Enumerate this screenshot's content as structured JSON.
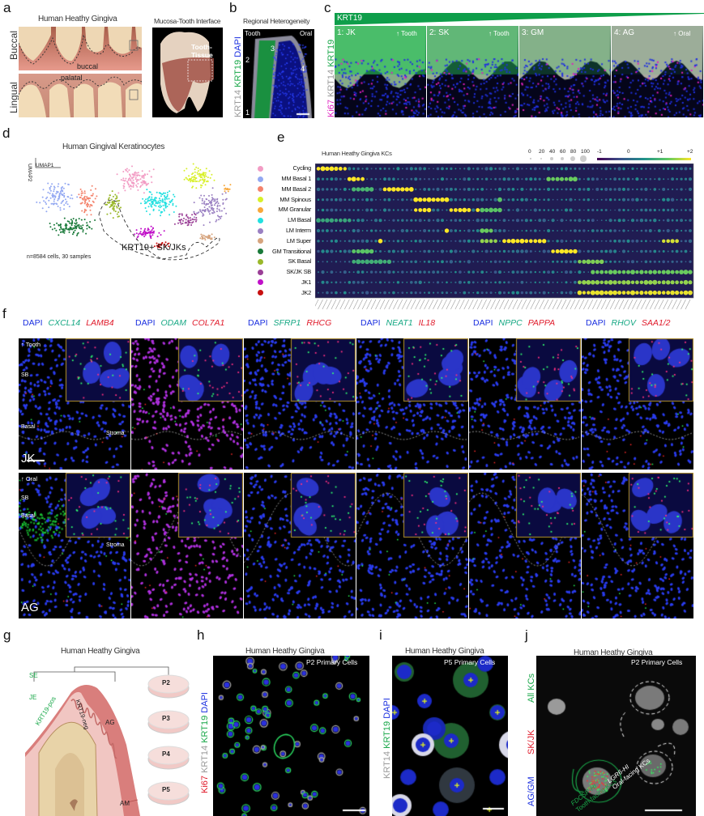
{
  "panel_labels": {
    "a": "a",
    "b": "b",
    "c": "c",
    "d": "d",
    "e": "e",
    "f": "f",
    "g": "g",
    "h": "h",
    "i": "i",
    "j": "j"
  },
  "panel_a": {
    "title": "Human Heathy Gingiva",
    "row_labels": [
      "Buccal",
      "Lingual"
    ],
    "annotations": [
      "buccal",
      "palatal"
    ],
    "interface_title": "Mucosa-Tooth Interface",
    "interface_label": "Tooth-\nTissue"
  },
  "panel_b": {
    "title": "Regional Heterogeneity",
    "stain": [
      {
        "text": "KRT14",
        "color": "grey"
      },
      {
        "text": "KRT19",
        "color": "green"
      },
      {
        "text": "DAPI",
        "color": "blue"
      }
    ],
    "left_dir": "Tooth",
    "right_dir": "Oral",
    "regions": [
      "1",
      "2",
      "3",
      "4"
    ]
  },
  "panel_c": {
    "gradient_label": "KRT19",
    "stain": [
      {
        "text": "Ki67",
        "color": "mag"
      },
      {
        "text": "KRT14",
        "color": "grey"
      },
      {
        "text": "KRT19",
        "color": "green"
      }
    ],
    "images": [
      {
        "label": "1: JK",
        "dir": "↑ Tooth"
      },
      {
        "label": "2: SK",
        "dir": "↑ Tooth"
      },
      {
        "label": "3: GM",
        "dir": ""
      },
      {
        "label": "4: AG",
        "dir": "↑ Oral"
      }
    ]
  },
  "panel_d": {
    "title": "Human Gingival Keratinocytes",
    "axis_x": "UMAP1",
    "axis_y": "UMAP2",
    "count_note": "n=8584 cells, 30 samples",
    "highlight_label": "KRT19+ SK/JKs"
  },
  "chart_data": {
    "type": "dotplot",
    "title": "Human Heathy Gingiva KCs",
    "size_legend": {
      "label_values": [
        "0",
        "20",
        "40",
        "60",
        "80",
        "100"
      ]
    },
    "color_legend": {
      "ticks": [
        "-1",
        "0",
        "+1",
        "+2"
      ],
      "range": [
        -1,
        2
      ]
    },
    "n_genes": 85,
    "rows": [
      {
        "name": "Cycling",
        "color": "#f29cc4",
        "high": [
          [
            0,
            6,
            2.0
          ]
        ]
      },
      {
        "name": "MM Basal 1",
        "color": "#93a8f2",
        "high": [
          [
            7,
            10,
            2.0
          ],
          [
            52,
            58,
            1.3
          ]
        ]
      },
      {
        "name": "MM Basal 2",
        "color": "#f4836c",
        "high": [
          [
            8,
            12,
            1.0
          ],
          [
            15,
            21,
            2.0
          ]
        ]
      },
      {
        "name": "MM Spinous",
        "color": "#d8f02a",
        "high": [
          [
            22,
            29,
            2.0
          ],
          [
            41,
            41,
            1.2
          ]
        ]
      },
      {
        "name": "MM Granular",
        "color": "#f8a83a",
        "high": [
          [
            22,
            25,
            2.0
          ],
          [
            30,
            34,
            2.0
          ],
          [
            36,
            36,
            2.0
          ],
          [
            37,
            41,
            1.2
          ]
        ]
      },
      {
        "name": "LM Basal",
        "color": "#22e0e0",
        "high": [
          [
            0,
            7,
            0.8
          ]
        ]
      },
      {
        "name": "LM Interm",
        "color": "#9a80c2",
        "high": [
          [
            29,
            29,
            2.0
          ],
          [
            37,
            39,
            1.3
          ]
        ]
      },
      {
        "name": "LM Super",
        "color": "#d6a47e",
        "high": [
          [
            14,
            14,
            2.0
          ],
          [
            37,
            40,
            1.5
          ],
          [
            42,
            51,
            2.0
          ],
          [
            78,
            81,
            1.8
          ]
        ]
      },
      {
        "name": "GM Transitional",
        "color": "#1a7a3a",
        "high": [
          [
            8,
            12,
            1.2
          ],
          [
            53,
            58,
            2.0
          ]
        ]
      },
      {
        "name": "SK Basal",
        "color": "#9ab82a",
        "high": [
          [
            8,
            16,
            0.9
          ],
          [
            59,
            64,
            1.4
          ]
        ]
      },
      {
        "name": "SK/JK SB",
        "color": "#9a3f96",
        "high": [
          [
            62,
            84,
            1.3
          ]
        ]
      },
      {
        "name": "JK1",
        "color": "#c010c8",
        "high": [
          [
            59,
            84,
            1.5
          ]
        ]
      },
      {
        "name": "JK2",
        "color": "#c81010",
        "high": [
          [
            59,
            84,
            1.9
          ]
        ]
      }
    ]
  },
  "panel_f": {
    "headers": [
      [
        "DAPI",
        "CXCL14",
        "LAMB4"
      ],
      [
        "DAPI",
        "ODAM",
        "COL7A1"
      ],
      [
        "DAPI",
        "SFRP1",
        "RHCG"
      ],
      [
        "DAPI",
        "NEAT1",
        "IL18"
      ],
      [
        "DAPI",
        "NPPC",
        "PAPPA"
      ],
      [
        "DAPI",
        "RHOV",
        "SAA1/2"
      ]
    ],
    "top_row": {
      "dir": "↑ Tooth",
      "sb": "SB",
      "basal": "Basal",
      "stroma": "Stroma",
      "region": "JK"
    },
    "bottom_row": {
      "dir": "↑ Oral",
      "sb": "SB",
      "basal": "Basal",
      "stroma": "Stroma",
      "region": "AG"
    }
  },
  "panel_g": {
    "title": "Human Heathy Gingiva",
    "labels": {
      "se": "SE",
      "je": "JE",
      "pos": "KRT19-pos",
      "neg": "KRT19-neg",
      "ag": "AG",
      "am": "AM"
    },
    "dishes": [
      "P2",
      "P3",
      "P4",
      "P5"
    ]
  },
  "panel_h": {
    "title": "Human Heathy Gingiva",
    "stain": [
      {
        "text": "Ki67",
        "color": "red"
      },
      {
        "text": "KRT14",
        "color": "grey"
      },
      {
        "text": "KRT19",
        "color": "green"
      },
      {
        "text": "DAPI",
        "color": "blue"
      }
    ],
    "caption": "P2 Primary Cells"
  },
  "panel_i": {
    "title": "Human Heathy Gingiva",
    "stain": [
      {
        "text": "KRT14",
        "color": "grey"
      },
      {
        "text": "KRT19",
        "color": "green"
      },
      {
        "text": "DAPI",
        "color": "blue"
      }
    ],
    "caption": "P5 Primary Cells"
  },
  "panel_j": {
    "title": "Human Heathy Gingiva",
    "caption": "P2 Primary Cells",
    "stain_groups": [
      {
        "a": "All KCs",
        "b": "SOX6",
        "color": "green"
      },
      {
        "a": "SK/JK",
        "b": "FDCSP",
        "color": "red"
      },
      {
        "a": "AG/GM",
        "b": "LGR6",
        "color": "blue"
      }
    ],
    "tooth_label": [
      "FDCSP-HI",
      "Tooth-facing KCs"
    ],
    "oral_label": [
      "LGR6-HI",
      "Oral-facing KCs"
    ]
  }
}
